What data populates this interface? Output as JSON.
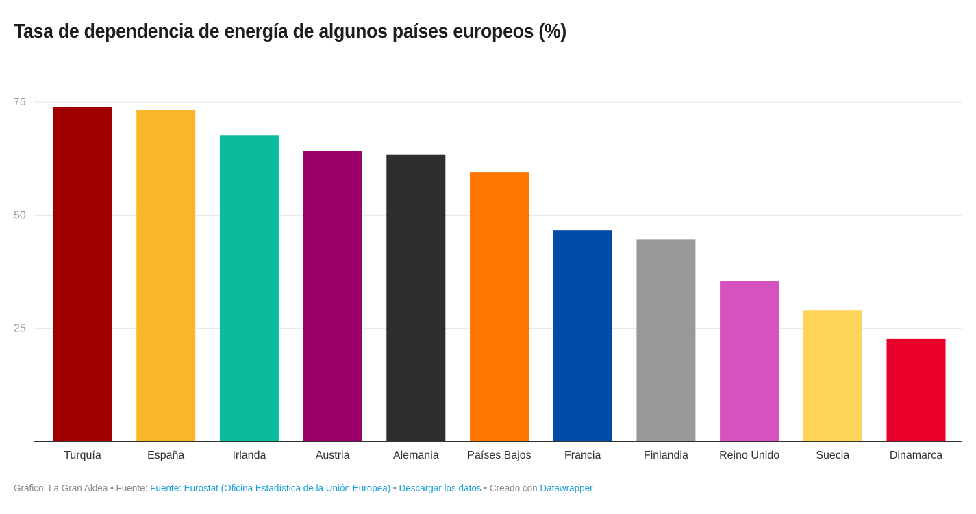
{
  "title": "Tasa de dependencia de energía de algunos países europeos (%)",
  "footer": {
    "credit_prefix": "Gráfico: La Gran Aldea • Fuente: ",
    "source_link": "Fuente: Eurostat (Oficina Estadística de la Unión Europea)",
    "sep1": " • ",
    "download_link": "Descargar los datos",
    "sep2": " • Creado con ",
    "tool_link": "Datawrapper"
  },
  "chart_data": {
    "type": "bar",
    "title": "Tasa de dependencia de energía de algunos países europeos (%)",
    "xlabel": "",
    "ylabel": "",
    "ylim": [
      0,
      75
    ],
    "yticks": [
      25,
      50,
      75
    ],
    "grid": true,
    "categories": [
      "Turquía",
      "España",
      "Irlanda",
      "Austria",
      "Alemania",
      "Países Bajos",
      "Francia",
      "Finlandia",
      "Reino Unido",
      "Suecia",
      "Dinamarca"
    ],
    "values": [
      73.9,
      73.3,
      67.7,
      64.2,
      63.4,
      59.4,
      46.7,
      44.7,
      35.5,
      29.0,
      22.7
    ],
    "colors": [
      "#a00000",
      "#fbb52a",
      "#0abb9e",
      "#9c006b",
      "#2e2e2e",
      "#ff7700",
      "#004ca9",
      "#999999",
      "#d552bf",
      "#fed459",
      "#e8002b"
    ]
  }
}
